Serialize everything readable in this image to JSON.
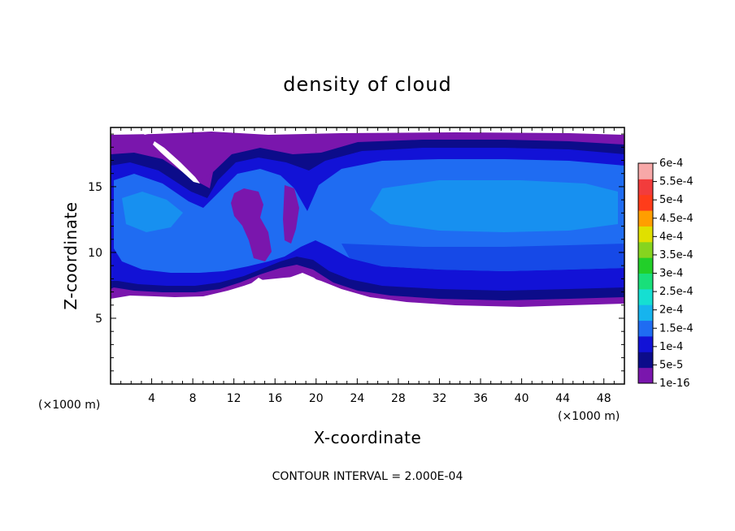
{
  "chart_data": {
    "type": "heatmap",
    "title": "density of cloud",
    "xlabel": "X-coordinate",
    "ylabel": "Z-coordinate",
    "x_unit": "(×1000 m)",
    "y_unit": "(×1000 m)",
    "xlim": [
      0,
      50
    ],
    "ylim": [
      0,
      19.5
    ],
    "x_ticks": [
      4,
      8,
      12,
      16,
      20,
      24,
      28,
      32,
      36,
      40,
      44,
      48
    ],
    "y_ticks": [
      5,
      10,
      15
    ],
    "legend": {
      "levels": [
        "1e-16",
        "5e-5",
        "1e-4",
        "1.5e-4",
        "2e-4",
        "2.5e-4",
        "3e-4",
        "3.5e-4",
        "4e-4",
        "4.5e-4",
        "5e-4",
        "5.5e-4",
        "6e-4"
      ],
      "colors": [
        "#7a16ad",
        "#0c0c8a",
        "#1212d6",
        "#1f6cf2",
        "#16b4ee",
        "#15dfd2",
        "#19df7a",
        "#22cf29",
        "#86d41f",
        "#e0e000",
        "#ff9e00",
        "#ff3c1a",
        "#f23c3c",
        "#f7a8a8"
      ],
      "placement": "right"
    },
    "footnote": "CONTOUR INTERVAL = 2.000E-04"
  }
}
